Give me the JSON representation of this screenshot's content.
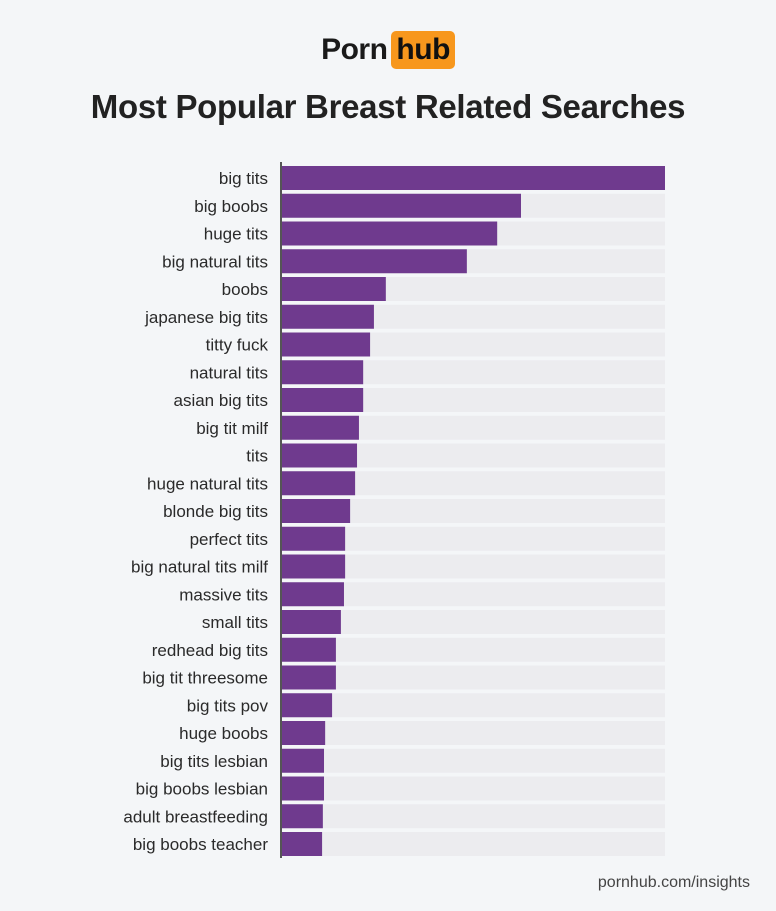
{
  "logo": {
    "text_left": "Porn",
    "text_right": "hub"
  },
  "title": "Most Popular Breast Related Searches",
  "footer": "pornhub.com/insights",
  "colors": {
    "bar": "#6f3a8e",
    "track": "#ececef",
    "accent": "#f7971d"
  },
  "chart_data": {
    "type": "bar",
    "orientation": "horizontal",
    "title": "Most Popular Breast Related Searches",
    "xlabel": "",
    "ylabel": "",
    "xlim": [
      0,
      100
    ],
    "grid": false,
    "categories": [
      "big tits",
      "big boobs",
      "huge tits",
      "big natural tits",
      "boobs",
      "japanese big tits",
      "titty fuck",
      "natural tits",
      "asian big tits",
      "big tit milf",
      "tits",
      "huge natural tits",
      "blonde big tits",
      "perfect tits",
      "big natural tits milf",
      "massive tits",
      "small tits",
      "redhead big tits",
      "big tit threesome",
      "big tits pov",
      "huge boobs",
      "big tits lesbian",
      "big boobs lesbian",
      "adult breastfeeding",
      "big boobs teacher"
    ],
    "values": [
      100,
      62.5,
      56.3,
      48.4,
      27.3,
      24.2,
      23.2,
      21.4,
      21.4,
      20.3,
      19.8,
      19.3,
      18.0,
      16.7,
      16.7,
      16.4,
      15.6,
      14.3,
      14.3,
      13.3,
      11.5,
      11.2,
      11.2,
      10.9,
      10.7
    ]
  }
}
